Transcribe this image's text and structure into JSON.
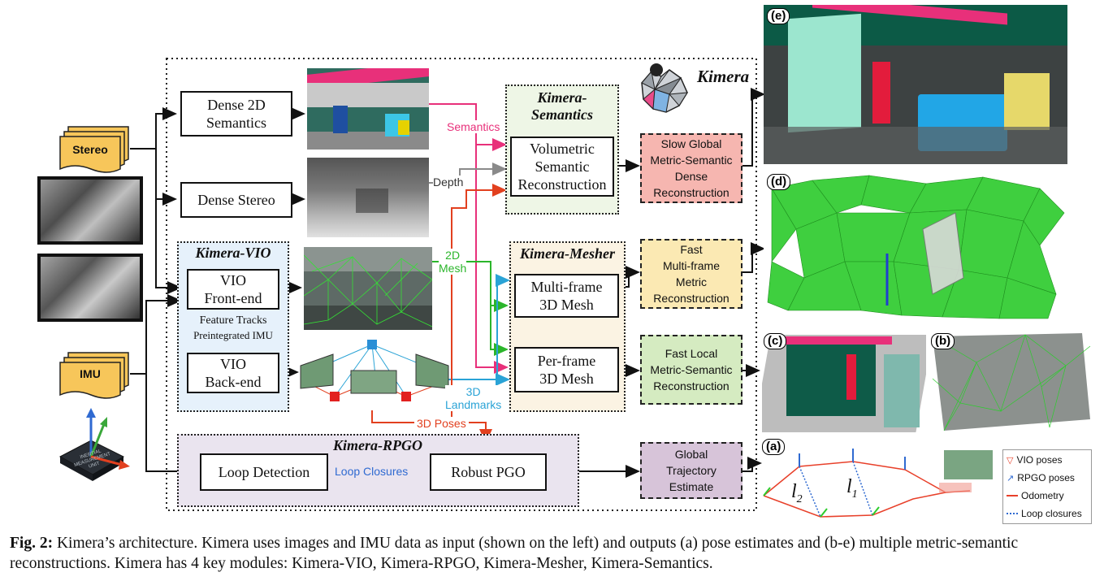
{
  "title": "Kimera",
  "inputs": {
    "stereo": "Stereo",
    "imu": "IMU",
    "chip_text": "INERTIAL MEASUREMENT UNIT"
  },
  "modules": {
    "dense_2d_semantics": "Dense 2D\nSemantics",
    "dense_stereo": "Dense Stereo",
    "vio_front_end": "VIO\nFront-end",
    "vio_back_end": "VIO\nBack-end",
    "feature_tracks": "Feature Tracks",
    "preintegrated_imu": "Preintegrated IMU",
    "loop_detection": "Loop Detection",
    "robust_pgo": "Robust PGO",
    "volumetric": "Volumetric\nSemantic\nReconstruction",
    "multi_frame_mesh": "Multi-frame\n3D Mesh",
    "per_frame_mesh": "Per-frame\n3D Mesh"
  },
  "regions": {
    "kimera_vio": "Kimera-VIO",
    "kimera_rpgo": "Kimera-RPGO",
    "kimera_semantics": "Kimera-\nSemantics",
    "kimera_mesher": "Kimera-Mesher"
  },
  "edge_labels": {
    "semantics": "Semantics",
    "depth": "Depth",
    "mesh_2d": "2D\nMesh",
    "landmarks_3d": "3D\nLandmarks",
    "poses_3d": "3D Poses",
    "loop_closures": "Loop Closures"
  },
  "outputs": {
    "slow_global": "Slow Global\nMetric-Semantic\nDense\nReconstruction",
    "fast_multi": "Fast\nMulti-frame\nMetric\nReconstruction",
    "fast_local": "Fast Local\nMetric-Semantic\nReconstruction",
    "global_traj": "Global\nTrajectory\nEstimate"
  },
  "panel_tags": {
    "e": "(e)",
    "d": "(d)",
    "c": "(c)",
    "b": "(b)",
    "a": "(a)"
  },
  "trajectory_labels": {
    "l2": "l",
    "l2_sub": "2",
    "l1": "l",
    "l1_sub": "1"
  },
  "legend": {
    "vio_poses": "VIO poses",
    "rpgo_poses": "RPGO poses",
    "odometry": "Odometry",
    "loop_closures": "Loop closures"
  },
  "caption": {
    "label": "Fig. 2:",
    "text": " Kimera’s architecture. Kimera uses images and IMU data as input (shown on the left) and outputs (a) pose estimates and (b-e) multiple metric-semantic reconstructions. Kimera has 4 key modules: Kimera-VIO, Kimera-RPGO, Kimera-Mesher, Kimera-Semantics."
  },
  "colors": {
    "semantics_arrow": "#e8307a",
    "depth_arrow": "#8a8a8a",
    "mesh_arrow": "#2bb52b",
    "landmarks_arrow": "#2aa3d6",
    "poses_arrow": "#e2401f",
    "loop_arrow": "#2f6ad1",
    "stereo_fill": "#f7c65a",
    "vio_fill": "#e6f1fb",
    "rpgo_fill": "#eae4ef",
    "semantics_fill": "#eef6e6",
    "mesher_fill": "#fbf3e3",
    "slow_global_fill": "#f6b6b0",
    "fast_multi_fill": "#fbe9b3",
    "fast_local_fill": "#d5ebc1",
    "global_traj_fill": "#d7c4d9"
  }
}
